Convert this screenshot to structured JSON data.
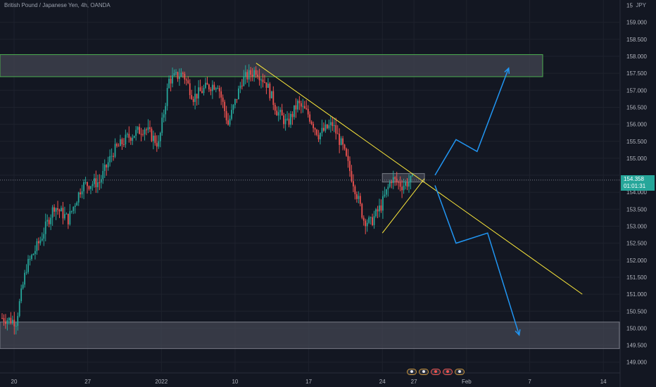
{
  "header": {
    "symbol_title": "British Pound / Japanese Yen, 4h, OANDA",
    "currency": "JPY"
  },
  "price_label": {
    "price": "154.358",
    "countdown": "01:01:31"
  },
  "colors": {
    "background": "#131722",
    "up": "#26a69a",
    "down": "#ef5350",
    "trendline": "#ffeb3b",
    "projection": "#2196f3",
    "zone_fill": "#434651",
    "zone_border_top": "#4caf50",
    "zone_border": "#787b86",
    "axis_text": "#b2b5be"
  },
  "event_icons": [
    {
      "icon": "earnings-icon",
      "status": "neutral"
    },
    {
      "icon": "earnings-icon",
      "status": "neutral"
    },
    {
      "icon": "earnings-icon",
      "status": "red"
    },
    {
      "icon": "earnings-icon",
      "status": "red"
    },
    {
      "icon": "earnings-icon",
      "status": "neutral"
    }
  ],
  "chart_data": {
    "type": "candlestick",
    "y_axis": {
      "range": [
        148.7,
        160.0
      ],
      "ticks": [
        "149.500",
        "150.000",
        "150.500",
        "151.000",
        "151.500",
        "152.000",
        "152.500",
        "153.000",
        "153.500",
        "154.000",
        "154.500",
        "155.000",
        "155.500",
        "156.000",
        "156.500",
        "157.000",
        "157.500",
        "158.000",
        "158.500",
        "159.000"
      ],
      "bottom_tick": "149.000",
      "top_tick": "15"
    },
    "x_axis": {
      "ticks": [
        "20",
        "27",
        "2022",
        "10",
        "17",
        "24",
        "27",
        "Feb",
        "7",
        "14"
      ]
    },
    "zones": [
      {
        "name": "resistance-zone",
        "from_date": "Dec 16",
        "to_date": "Feb 9",
        "price_low": 157.4,
        "price_high": 158.05
      },
      {
        "name": "support-zone",
        "from_date": "Dec 16",
        "to_date": "Feb 14",
        "price_low": 149.4,
        "price_high": 150.18
      },
      {
        "name": "breakout-box",
        "from_date": "Jan 24",
        "to_date": "Jan 28",
        "price_low": 154.3,
        "price_high": 154.55
      }
    ],
    "trendlines": [
      {
        "name": "descending-trendline",
        "from": {
          "date": "Jan 12",
          "price": 157.8
        },
        "to": {
          "date": "Feb 12",
          "price": 151.0
        }
      },
      {
        "name": "ascending-trendline",
        "from": {
          "date": "Jan 24",
          "price": 152.8
        },
        "to": {
          "date": "Jan 28",
          "price": 154.4
        }
      }
    ],
    "projections": [
      {
        "name": "bullish-path",
        "points": [
          [
            "Jan 29",
            154.5
          ],
          [
            "Jan 31",
            155.55
          ],
          [
            "Feb 2",
            155.2
          ],
          [
            "Feb 5",
            157.65
          ]
        ]
      },
      {
        "name": "bearish-path",
        "points": [
          [
            "Jan 29",
            154.2
          ],
          [
            "Jan 31",
            152.5
          ],
          [
            "Feb 3",
            152.8
          ],
          [
            "Feb 6",
            149.8
          ]
        ]
      }
    ],
    "anchors": [
      {
        "t": 0,
        "p": 150.3
      },
      {
        "t": 8,
        "p": 150.2
      },
      {
        "t": 14,
        "p": 151.8
      },
      {
        "t": 22,
        "p": 152.6
      },
      {
        "t": 30,
        "p": 153.6
      },
      {
        "t": 38,
        "p": 153.2
      },
      {
        "t": 46,
        "p": 154.2
      },
      {
        "t": 56,
        "p": 154.3
      },
      {
        "t": 64,
        "p": 155.2
      },
      {
        "t": 72,
        "p": 155.6
      },
      {
        "t": 82,
        "p": 155.9
      },
      {
        "t": 90,
        "p": 155.4
      },
      {
        "t": 96,
        "p": 157.3
      },
      {
        "t": 104,
        "p": 157.5
      },
      {
        "t": 110,
        "p": 156.8
      },
      {
        "t": 118,
        "p": 157.1
      },
      {
        "t": 124,
        "p": 157.2
      },
      {
        "t": 130,
        "p": 156.0
      },
      {
        "t": 138,
        "p": 157.3
      },
      {
        "t": 146,
        "p": 157.6
      },
      {
        "t": 152,
        "p": 157.2
      },
      {
        "t": 158,
        "p": 156.4
      },
      {
        "t": 164,
        "p": 156.0
      },
      {
        "t": 170,
        "p": 156.6
      },
      {
        "t": 176,
        "p": 156.3
      },
      {
        "t": 182,
        "p": 155.7
      },
      {
        "t": 190,
        "p": 156.0
      },
      {
        "t": 196,
        "p": 155.3
      },
      {
        "t": 202,
        "p": 154.3
      },
      {
        "t": 208,
        "p": 153.2
      },
      {
        "t": 212,
        "p": 153.1
      },
      {
        "t": 218,
        "p": 153.6
      },
      {
        "t": 224,
        "p": 154.4
      },
      {
        "t": 230,
        "p": 154.2
      },
      {
        "t": 236,
        "p": 154.36
      }
    ]
  }
}
